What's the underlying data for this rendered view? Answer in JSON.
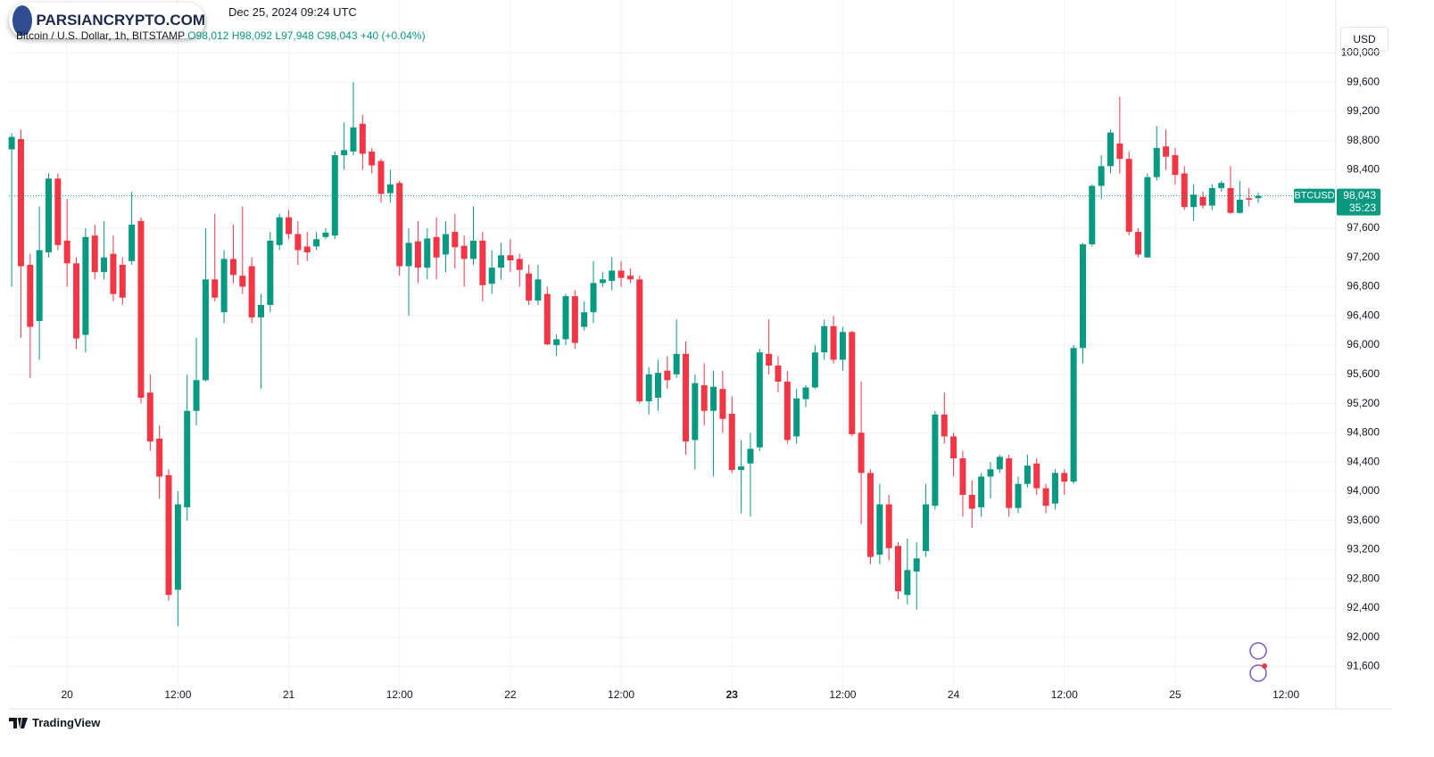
{
  "chart_data": {
    "type": "candlestick",
    "header": "Dec 25, 2024 09:24 UTC",
    "watermark": "PARSIANCRYPTO.COM",
    "brand": "TradingView",
    "currency": "USD",
    "title": "Bitcoin / U.S. Dollar, 1h, BITSTAMP",
    "ohlc_legend": [
      "O98,012",
      "H98,092",
      "L97,948",
      "C98,043",
      "+40 (+0.04%)"
    ],
    "price_tag": {
      "symbol": "BTCUSD",
      "price": "98,043",
      "countdown": "35:23"
    },
    "up_color": "#089981",
    "down_color": "#f23645",
    "grid": true,
    "open": [
      98680,
      98820,
      97100,
      96330,
      97270,
      98280,
      97430,
      97120,
      96140,
      97500,
      97000,
      97250,
      97100,
      97150,
      97700,
      95350,
      94720,
      94220,
      92650,
      93780,
      95100,
      95520,
      96900,
      96450,
      97180,
      96950,
      97080,
      96380,
      96550,
      97370,
      97750,
      97520,
      97350,
      97350,
      97480,
      97500,
      98600,
      98650,
      99030,
      98650,
      98520,
      98080,
      98220,
      97080,
      97420,
      97060,
      97480,
      97240,
      97550,
      97360,
      97180,
      97430,
      96840,
      97060,
      97230,
      97180,
      96980,
      96610,
      96700,
      96000,
      96080,
      96670,
      96250,
      96450,
      96850,
      96880,
      97020,
      96950,
      96900,
      95230,
      95280,
      95650,
      95600,
      95880,
      94700,
      95450,
      95100,
      95400,
      95060,
      94290,
      94380,
      94600,
      95880,
      95720,
      95500,
      94750,
      95260,
      95420,
      95900,
      96260,
      95800,
      96180,
      94800,
      94250,
      93130,
      93820,
      93250,
      92580,
      92900,
      93180,
      93800,
      95050,
      94750,
      94450,
      93950,
      93780,
      94200,
      94300,
      94450,
      93770,
      94100,
      94380,
      94040,
      93830,
      94250,
      94130,
      95960,
      97380,
      98180,
      98450,
      98760,
      98550,
      97550,
      97200,
      98300,
      98720,
      98600,
      98350,
      97890,
      98030,
      97910,
      98150,
      98150,
      97810,
      98010,
      98012
    ],
    "high": [
      98900,
      98950,
      97250,
      97900,
      98350,
      98350,
      98000,
      97200,
      97600,
      97650,
      97700,
      97500,
      97200,
      98100,
      97750,
      95600,
      94900,
      94300,
      94000,
      95600,
      96100,
      97600,
      97800,
      97300,
      97650,
      97900,
      97200,
      96700,
      97550,
      97800,
      97850,
      97700,
      97550,
      97550,
      97600,
      98650,
      99050,
      99600,
      99150,
      98700,
      98550,
      98400,
      98250,
      97600,
      97700,
      97600,
      97750,
      97700,
      97800,
      97500,
      97900,
      97550,
      97300,
      97400,
      97450,
      97250,
      97100,
      97100,
      96800,
      96150,
      96700,
      96750,
      96600,
      97150,
      97000,
      97200,
      97150,
      97050,
      96950,
      95700,
      95800,
      95850,
      96350,
      96050,
      95600,
      95750,
      95650,
      95650,
      95300,
      94700,
      94800,
      95950,
      96350,
      95850,
      95650,
      95400,
      95450,
      96000,
      96350,
      96400,
      96250,
      96200,
      95500,
      94300,
      94100,
      93950,
      93300,
      93350,
      93300,
      94100,
      95100,
      95350,
      94800,
      94550,
      94150,
      94250,
      94400,
      94500,
      94500,
      94200,
      94500,
      94450,
      94100,
      94300,
      94300,
      96000,
      97400,
      98200,
      98600,
      98950,
      99400,
      98650,
      97600,
      98350,
      99000,
      98950,
      98700,
      98450,
      98200,
      98100,
      98200,
      98250,
      98450,
      98250,
      98150,
      98092
    ],
    "low": [
      96800,
      96100,
      95550,
      95800,
      97200,
      97300,
      96800,
      95950,
      95900,
      96900,
      96900,
      96600,
      96550,
      97100,
      95200,
      94550,
      93900,
      92500,
      92150,
      93600,
      94900,
      95500,
      96600,
      96300,
      96850,
      96700,
      96300,
      95400,
      96450,
      97300,
      97450,
      97100,
      97150,
      97300,
      97450,
      97450,
      98400,
      98600,
      98400,
      98350,
      97950,
      97950,
      96950,
      96400,
      96850,
      96900,
      96900,
      97000,
      97050,
      96800,
      97100,
      96600,
      96700,
      96900,
      97000,
      96800,
      96550,
      96550,
      96000,
      95850,
      96000,
      95950,
      96200,
      96300,
      96800,
      96750,
      96800,
      96850,
      95200,
      95050,
      95100,
      95400,
      95550,
      94500,
      94300,
      94900,
      94200,
      94800,
      94250,
      93700,
      93650,
      94550,
      95600,
      95350,
      94650,
      94650,
      95150,
      95400,
      95800,
      95750,
      95650,
      94750,
      93550,
      93000,
      93000,
      93050,
      92520,
      92450,
      92380,
      93100,
      93750,
      94650,
      94200,
      93650,
      93500,
      93650,
      93900,
      94250,
      93650,
      93700,
      94050,
      93950,
      93700,
      93750,
      93950,
      94100,
      95750,
      97350,
      98000,
      98350,
      98350,
      97500,
      97200,
      97200,
      98250,
      98400,
      98200,
      97850,
      97700,
      97870,
      97850,
      98100,
      97800,
      97800,
      97900,
      97948
    ],
    "close": [
      98850,
      97080,
      96250,
      97300,
      98280,
      97370,
      97120,
      96090,
      97480,
      97000,
      97200,
      96700,
      96650,
      97650,
      95280,
      94680,
      94200,
      92580,
      93820,
      95100,
      95520,
      96900,
      96650,
      97180,
      96960,
      96800,
      96380,
      96550,
      97430,
      97750,
      97520,
      97300,
      97270,
      97450,
      97540,
      98600,
      98670,
      98980,
      98620,
      98460,
      98070,
      98200,
      97080,
      97400,
      97060,
      97460,
      97200,
      97520,
      97340,
      97180,
      97430,
      96820,
      97060,
      97230,
      97160,
      97030,
      96610,
      96900,
      96010,
      96080,
      96670,
      96030,
      96450,
      96850,
      96900,
      97020,
      96920,
      96900,
      95230,
      95600,
      95620,
      95520,
      95880,
      94680,
      95480,
      95100,
      95430,
      94990,
      94290,
      94340,
      94580,
      95900,
      95720,
      95500,
      94700,
      95270,
      95420,
      95900,
      96260,
      95800,
      96180,
      94780,
      94250,
      93100,
      93820,
      93220,
      92630,
      92920,
      93080,
      93820,
      95050,
      94750,
      94450,
      93950,
      93760,
      94200,
      94300,
      94470,
      93770,
      94100,
      94350,
      94040,
      93800,
      94250,
      94130,
      95960,
      97380,
      98180,
      98450,
      98910,
      98550,
      97550,
      97240,
      98300,
      98700,
      98580,
      98330,
      97890,
      98060,
      97910,
      98150,
      98220,
      97810,
      97990,
      97990,
      98043
    ],
    "xlim": [
      -0.3,
      143.4
    ],
    "xticks": [
      {
        "value": 6,
        "label": "20"
      },
      {
        "value": 18,
        "label": "12:00"
      },
      {
        "value": 30,
        "label": "21"
      },
      {
        "value": 42,
        "label": "12:00"
      },
      {
        "value": 54,
        "label": "22"
      },
      {
        "value": 66,
        "label": "12:00"
      },
      {
        "value": 78,
        "label": "23",
        "bold": true
      },
      {
        "value": 90,
        "label": "12:00"
      },
      {
        "value": 102,
        "label": "24"
      },
      {
        "value": 114,
        "label": "12:00"
      },
      {
        "value": 126,
        "label": "25"
      },
      {
        "value": 138,
        "label": "12:00"
      }
    ],
    "ylim": [
      91020,
      100090
    ],
    "yticks": [
      {
        "value": 100000,
        "label": "100,000"
      },
      {
        "value": 99600,
        "label": "99,600"
      },
      {
        "value": 99200,
        "label": "99,200"
      },
      {
        "value": 98800,
        "label": "98,800"
      },
      {
        "value": 98400,
        "label": "98,400"
      },
      {
        "value": 98000,
        "label": "98,000"
      },
      {
        "value": 97600,
        "label": "97,600"
      },
      {
        "value": 97200,
        "label": "97,200"
      },
      {
        "value": 96800,
        "label": "96,800"
      },
      {
        "value": 96400,
        "label": "96,400"
      },
      {
        "value": 96000,
        "label": "96,000"
      },
      {
        "value": 95600,
        "label": "95,600"
      },
      {
        "value": 95200,
        "label": "95,200"
      },
      {
        "value": 94800,
        "label": "94,800"
      },
      {
        "value": 94400,
        "label": "94,400"
      },
      {
        "value": 94000,
        "label": "94,000"
      },
      {
        "value": 93600,
        "label": "93,600"
      },
      {
        "value": 93200,
        "label": "93,200"
      },
      {
        "value": 92800,
        "label": "92,800"
      },
      {
        "value": 92400,
        "label": "92,400"
      },
      {
        "value": 92000,
        "label": "92,000"
      },
      {
        "value": 91600,
        "label": "91,600"
      }
    ]
  }
}
